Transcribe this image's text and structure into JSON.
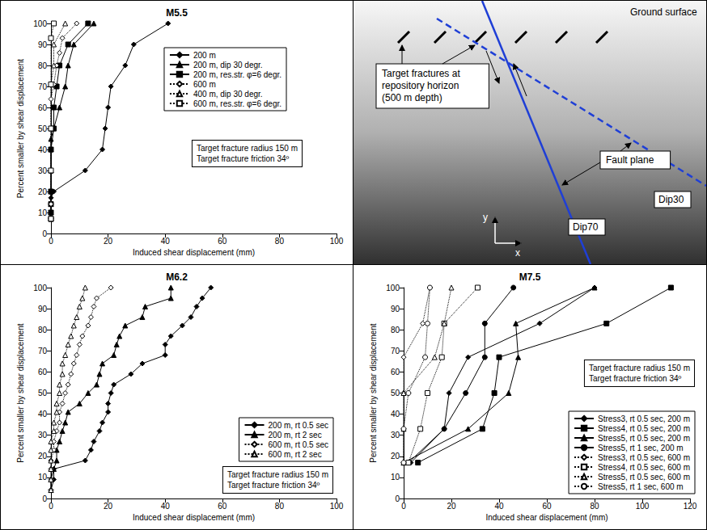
{
  "chart_data": [
    {
      "type": "line",
      "title": "M5.5",
      "x_label": "Induced shear displacement (mm)",
      "y_label": "Percent smaller by shear displacement",
      "xlim": [
        0,
        100
      ],
      "xticks": [
        0,
        20,
        40,
        60,
        80,
        100
      ],
      "ylim": [
        0,
        100
      ],
      "yticks": [
        0,
        10,
        20,
        30,
        40,
        50,
        60,
        70,
        80,
        90,
        100
      ],
      "grid": false,
      "legend": "right",
      "annotations": [
        "Target fracture radius 150 m",
        "Target fracture friction 34º"
      ],
      "series": [
        {
          "name": "200 m",
          "color": "#000000",
          "marker": "diamond",
          "line_style": "solid",
          "x": [
            0,
            0,
            0,
            0,
            1,
            12,
            18,
            19,
            20,
            21,
            26,
            29,
            41
          ],
          "values": [
            7,
            10,
            14,
            17,
            20,
            30,
            40,
            50,
            60,
            70,
            80,
            90,
            100
          ]
        },
        {
          "name": "200 m, dip 30 degr.",
          "color": "#000000",
          "marker": "triangle",
          "line_style": "solid",
          "x": [
            0,
            0,
            0,
            0,
            0,
            0,
            0,
            1,
            3,
            5,
            6,
            8,
            15
          ],
          "values": [
            7,
            10,
            14,
            20,
            30,
            40,
            45,
            50,
            60,
            70,
            80,
            90,
            100
          ]
        },
        {
          "name": "200 m, res.str. φ=6 degr.",
          "color": "#000000",
          "marker": "square",
          "line_style": "solid",
          "x": [
            0,
            0,
            0,
            0,
            0,
            1,
            1,
            2,
            3,
            6,
            13
          ],
          "values": [
            7,
            10,
            14,
            20,
            40,
            50,
            60,
            70,
            80,
            90,
            100
          ]
        },
        {
          "name": "600 m",
          "color": "#000000",
          "marker": "open_diamond",
          "line_style": "dotted",
          "x": [
            0,
            0,
            0,
            0,
            0,
            1,
            2,
            3,
            4,
            9
          ],
          "values": [
            7,
            14,
            30,
            50,
            64,
            71,
            80,
            86,
            93,
            100
          ]
        },
        {
          "name": "400 m, dip 30 degr.",
          "color": "#000000",
          "marker": "open_triangle",
          "line_style": "dotted",
          "x": [
            0,
            0,
            0,
            0,
            1,
            1,
            5
          ],
          "values": [
            7,
            30,
            50,
            71,
            80,
            90,
            100
          ]
        },
        {
          "name": "600 m, res.str. φ=6 degr.",
          "color": "#000000",
          "marker": "open_square",
          "line_style": "dotted",
          "x": [
            0,
            0,
            0,
            0,
            0,
            1
          ],
          "values": [
            7,
            30,
            50,
            71,
            93,
            100
          ]
        }
      ]
    },
    {
      "type": "line",
      "title": "M6.2",
      "x_label": "Induced shear displacement (mm)",
      "y_label": "Percent smaller by shear displacement",
      "xlim": [
        0,
        100
      ],
      "xticks": [
        0,
        20,
        40,
        60,
        80,
        100
      ],
      "ylim": [
        0,
        100
      ],
      "yticks": [
        0,
        10,
        20,
        30,
        40,
        50,
        60,
        70,
        80,
        90,
        100
      ],
      "grid": false,
      "legend": "lower right",
      "annotations": [
        "Target fracture radius 150 m",
        "Target fracture friction 34º"
      ],
      "series": [
        {
          "name": "200 m, rt 0.5 sec",
          "color": "#000000",
          "marker": "diamond",
          "line_style": "solid",
          "x": [
            0,
            1,
            1,
            12,
            14,
            15,
            17,
            18,
            20,
            20,
            21,
            22,
            28,
            32,
            40,
            40,
            42,
            46,
            49,
            51,
            53,
            56
          ],
          "values": [
            4,
            9,
            14,
            18,
            23,
            27,
            32,
            36,
            41,
            45,
            50,
            54,
            59,
            64,
            68,
            73,
            77,
            82,
            86,
            91,
            95,
            100
          ]
        },
        {
          "name": "200 m, rt 2 sec",
          "color": "#000000",
          "marker": "triangle",
          "line_style": "solid",
          "x": [
            0,
            0,
            1,
            2,
            2,
            3,
            4,
            5,
            6,
            10,
            13,
            16,
            17,
            18,
            22,
            23,
            24,
            26,
            32,
            33,
            42,
            42
          ],
          "values": [
            4,
            9,
            14,
            18,
            23,
            27,
            32,
            36,
            41,
            45,
            50,
            54,
            59,
            64,
            68,
            73,
            77,
            82,
            86,
            91,
            95,
            100
          ]
        },
        {
          "name": "600 m, rt 0.5 sec",
          "color": "#000000",
          "marker": "open_diamond",
          "line_style": "dotted",
          "x": [
            0,
            0,
            0,
            0,
            1,
            1,
            2,
            3,
            3,
            4,
            5,
            6,
            7,
            8,
            9,
            10,
            11,
            13,
            14,
            15,
            16,
            21
          ],
          "values": [
            4,
            9,
            14,
            18,
            23,
            27,
            32,
            36,
            41,
            45,
            50,
            54,
            59,
            64,
            68,
            73,
            77,
            82,
            86,
            91,
            95,
            100
          ]
        },
        {
          "name": "600 m, rt 2 sec",
          "color": "#000000",
          "marker": "open_triangle",
          "line_style": "dotted",
          "x": [
            0,
            0,
            0,
            0,
            0,
            0,
            1,
            1,
            2,
            2,
            3,
            3,
            4,
            4,
            5,
            6,
            7,
            8,
            9,
            10,
            11,
            12
          ],
          "values": [
            4,
            9,
            14,
            18,
            23,
            27,
            32,
            36,
            41,
            45,
            50,
            54,
            59,
            64,
            68,
            73,
            77,
            82,
            86,
            91,
            95,
            100
          ]
        }
      ]
    },
    {
      "type": "line",
      "title": "M7.5",
      "x_label": "Induced shear displacement (mm)",
      "y_label": "Percent smaller by shear displacement",
      "xlim": [
        0,
        120
      ],
      "xticks": [
        0,
        20,
        40,
        60,
        80,
        100,
        120
      ],
      "ylim": [
        0,
        100
      ],
      "yticks": [
        0,
        10,
        20,
        30,
        40,
        50,
        60,
        70,
        80,
        90,
        100
      ],
      "grid": false,
      "legend": "lower right",
      "annotations": [
        "Target fracture radius 150 m",
        "Target fracture friction 34º"
      ],
      "series": [
        {
          "name": "Stress3, rt 0.5 sec, 200 m",
          "color": "#000000",
          "marker": "diamond",
          "line_style": "solid",
          "x": [
            3,
            17,
            19,
            27,
            57,
            80
          ],
          "values": [
            17,
            33,
            50,
            67,
            83,
            100
          ]
        },
        {
          "name": "Stress4, rt 0.5 sec, 200 m",
          "color": "#000000",
          "marker": "square",
          "line_style": "solid",
          "x": [
            6,
            33,
            38,
            40,
            85,
            112
          ],
          "values": [
            17,
            33,
            50,
            67,
            83,
            100
          ]
        },
        {
          "name": "Stress5, rt 0.5 sec, 200 m",
          "color": "#000000",
          "marker": "triangle",
          "line_style": "solid",
          "x": [
            0,
            27,
            44,
            48,
            47,
            80
          ],
          "values": [
            17,
            33,
            50,
            67,
            83,
            100
          ]
        },
        {
          "name": "Stress5, rt 1 sec, 200 m",
          "color": "#000000",
          "marker": "circle",
          "line_style": "solid",
          "x": [
            2,
            17,
            26,
            34,
            34,
            46
          ],
          "values": [
            17,
            33,
            50,
            67,
            83,
            100
          ]
        },
        {
          "name": "Stress3, rt 0.5 sec, 600 m",
          "color": "#000000",
          "marker": "open_diamond",
          "line_style": "dotted",
          "x": [
            0,
            0,
            0,
            0,
            8,
            11
          ],
          "values": [
            17,
            33,
            50,
            67,
            83,
            100
          ]
        },
        {
          "name": "Stress4, rt 0.5 sec, 600 m",
          "color": "#000000",
          "marker": "open_square",
          "line_style": "dotted",
          "x": [
            2,
            7,
            10,
            16,
            17,
            31
          ],
          "values": [
            17,
            33,
            50,
            67,
            83,
            100
          ]
        },
        {
          "name": "Stress5, rt 0.5 sec, 600 m",
          "color": "#000000",
          "marker": "open_triangle",
          "line_style": "dotted",
          "x": [
            0,
            0,
            0,
            13,
            17,
            20
          ],
          "values": [
            17,
            33,
            50,
            67,
            83,
            100
          ]
        },
        {
          "name": "Stress5, rt 1 sec, 600 m",
          "color": "#000000",
          "marker": "open_circle",
          "line_style": "dotted",
          "x": [
            0,
            0,
            2,
            9,
            10,
            11
          ],
          "values": [
            17,
            33,
            50,
            67,
            83,
            100
          ]
        }
      ]
    }
  ],
  "diagram": {
    "ground_surface": "Ground surface",
    "target_fractures": [
      "Target fractures at",
      "repository horizon",
      "(500 m depth)"
    ],
    "fault_plane": "Fault plane",
    "dip30": "Dip30",
    "dip70": "Dip70",
    "y_axis": "y",
    "x_axis": "x"
  }
}
